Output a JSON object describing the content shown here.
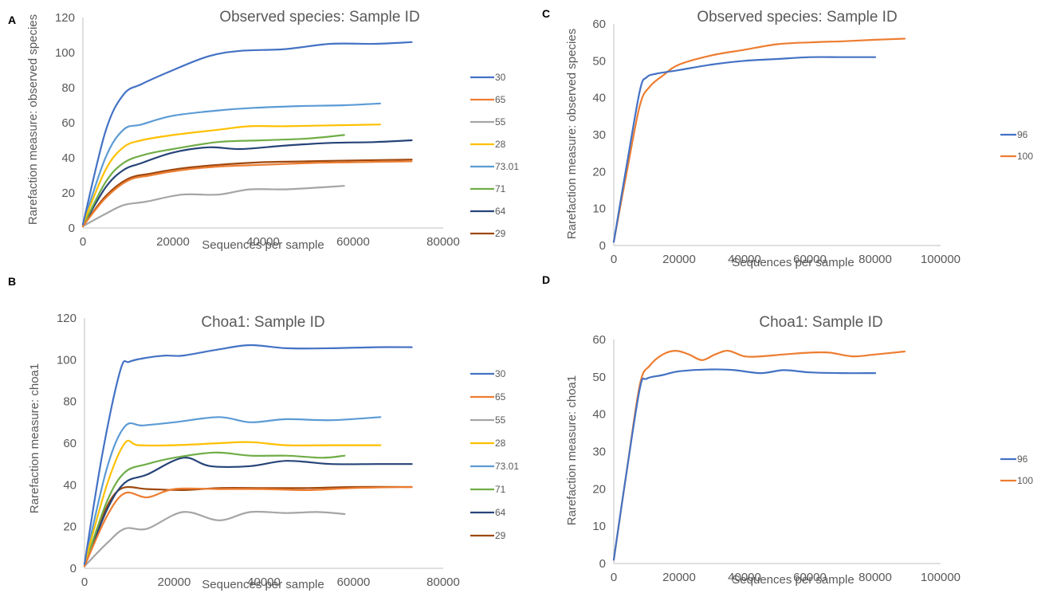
{
  "colors": {
    "30": "#4472c4",
    "65": "#ed7d31",
    "55": "#a5a5a5",
    "28": "#ffc000",
    "73.01": "#5b9bd5",
    "71": "#70ad47",
    "64": "#264478",
    "29": "#9e480e",
    "96": "#4472c4",
    "100": "#ed7d31",
    "axis": "#bfbfbf",
    "text": "#595959"
  },
  "chart_data": [
    {
      "panel": "A",
      "type": "line",
      "title": "Observed species: Sample ID",
      "xlabel": "Sequences per sample",
      "ylabel": "Rarefaction measure: observed species",
      "xlim": [
        0,
        80000
      ],
      "ylim": [
        0,
        120
      ],
      "xticks": [
        0,
        20000,
        40000,
        60000,
        80000
      ],
      "yticks": [
        0,
        20,
        40,
        60,
        80,
        100,
        120
      ],
      "legend_position": "right",
      "series": [
        {
          "name": "30",
          "x": [
            0,
            5000,
            9000,
            13000,
            20000,
            28000,
            35000,
            45000,
            55000,
            65000,
            73000
          ],
          "values": [
            2,
            55,
            76,
            82,
            90,
            98,
            101,
            102,
            105,
            105,
            106
          ]
        },
        {
          "name": "65",
          "x": [
            0,
            5000,
            10000,
            15000,
            22000,
            30000,
            40000,
            50000,
            60000,
            73000
          ],
          "values": [
            1,
            17,
            27,
            30,
            33,
            35,
            36,
            37,
            37.5,
            38
          ]
        },
        {
          "name": "55",
          "x": [
            0,
            5000,
            9000,
            14000,
            22000,
            30000,
            37000,
            45000,
            52000,
            58000
          ],
          "values": [
            1,
            8,
            13,
            15,
            19,
            19,
            22,
            22,
            23,
            24
          ]
        },
        {
          "name": "28",
          "x": [
            0,
            5000,
            9000,
            13000,
            20000,
            30000,
            37000,
            45000,
            55000,
            66000
          ],
          "values": [
            2,
            33,
            46,
            50,
            53,
            56,
            58,
            58,
            58.5,
            59
          ]
        },
        {
          "name": "73.01",
          "x": [
            0,
            5000,
            9000,
            13000,
            20000,
            30000,
            38000,
            48000,
            58000,
            66000
          ],
          "values": [
            2,
            40,
            56,
            59,
            64,
            67,
            68.5,
            69.5,
            70,
            71
          ]
        },
        {
          "name": "71",
          "x": [
            0,
            5000,
            9000,
            14000,
            20000,
            30000,
            40000,
            50000,
            58000
          ],
          "values": [
            1,
            26,
            37,
            42,
            45,
            49,
            50,
            51,
            53
          ]
        },
        {
          "name": "64",
          "x": [
            0,
            5000,
            9000,
            13000,
            20000,
            28000,
            35000,
            45000,
            55000,
            65000,
            73000
          ],
          "values": [
            1,
            23,
            33,
            37,
            43,
            46,
            45,
            47,
            48.5,
            49,
            50
          ]
        },
        {
          "name": "29",
          "x": [
            0,
            5000,
            10000,
            15000,
            22000,
            30000,
            40000,
            50000,
            60000,
            73000
          ],
          "values": [
            1,
            18,
            28,
            31,
            34,
            36,
            37.5,
            38,
            38.5,
            39
          ]
        }
      ]
    },
    {
      "panel": "B",
      "type": "line",
      "title": "Choa1: Sample ID",
      "xlabel": "Sequences per sample",
      "ylabel": "Rarefaction measure: choa1",
      "xlim": [
        0,
        80000
      ],
      "ylim": [
        0,
        120
      ],
      "xticks": [
        0,
        20000,
        40000,
        60000,
        80000
      ],
      "yticks": [
        0,
        20,
        40,
        60,
        80,
        100,
        120
      ],
      "legend_position": "right",
      "series": [
        {
          "name": "30",
          "x": [
            0,
            4000,
            8000,
            10000,
            14000,
            18000,
            22000,
            30000,
            37000,
            45000,
            55000,
            65000,
            73000
          ],
          "values": [
            2,
            55,
            95,
            99,
            101,
            102,
            102,
            105,
            107,
            105.5,
            105.5,
            106,
            106
          ]
        },
        {
          "name": "65",
          "x": [
            0,
            5000,
            9000,
            14000,
            20000,
            30000,
            40000,
            50000,
            60000,
            73000
          ],
          "values": [
            1,
            25,
            36,
            34,
            38,
            38,
            38,
            37.5,
            38.5,
            39
          ]
        },
        {
          "name": "55",
          "x": [
            0,
            5000,
            9000,
            14000,
            22000,
            30000,
            37000,
            45000,
            52000,
            58000
          ],
          "values": [
            1,
            12,
            19,
            19,
            27,
            23,
            27,
            26.5,
            27,
            26
          ]
        },
        {
          "name": "28",
          "x": [
            0,
            5000,
            9000,
            12000,
            20000,
            30000,
            37000,
            45000,
            55000,
            66000
          ],
          "values": [
            2,
            40,
            60,
            59,
            59,
            60,
            60.5,
            59,
            59,
            59
          ]
        },
        {
          "name": "73.01",
          "x": [
            0,
            5000,
            9000,
            13000,
            20000,
            30000,
            37000,
            45000,
            55000,
            66000
          ],
          "values": [
            2,
            48,
            68,
            68.5,
            70,
            72.5,
            70,
            71.5,
            71,
            72.5
          ]
        },
        {
          "name": "71",
          "x": [
            0,
            5000,
            9000,
            14000,
            20000,
            29000,
            37000,
            45000,
            53000,
            58000
          ],
          "values": [
            1,
            32,
            46,
            50,
            53,
            55.5,
            54,
            54,
            53,
            54
          ]
        },
        {
          "name": "64",
          "x": [
            0,
            5000,
            9000,
            14000,
            22000,
            28000,
            37000,
            45000,
            55000,
            65000,
            73000
          ],
          "values": [
            1,
            28,
            41,
            45,
            53,
            49,
            49,
            51.5,
            50,
            50,
            50
          ]
        },
        {
          "name": "29",
          "x": [
            0,
            4000,
            8000,
            14000,
            22000,
            30000,
            40000,
            50000,
            60000,
            73000
          ],
          "values": [
            1,
            25,
            38,
            38,
            37.5,
            38.5,
            38.5,
            38.5,
            39,
            39
          ]
        }
      ]
    },
    {
      "panel": "C",
      "type": "line",
      "title": "Observed species: Sample ID",
      "xlabel": "Sequences per sample",
      "ylabel": "Rarefaction measure: observed species",
      "xlim": [
        0,
        100000
      ],
      "ylim": [
        0,
        60
      ],
      "xticks": [
        0,
        20000,
        40000,
        60000,
        80000,
        100000
      ],
      "yticks": [
        0,
        10,
        20,
        30,
        40,
        50,
        60
      ],
      "legend_position": "right",
      "series": [
        {
          "name": "96",
          "x": [
            0,
            4000,
            8000,
            10000,
            13000,
            20000,
            30000,
            40000,
            50000,
            60000,
            70000,
            80000
          ],
          "values": [
            1,
            22,
            42,
            45.5,
            46.5,
            47.5,
            49,
            50,
            50.5,
            51,
            51,
            51
          ]
        },
        {
          "name": "100",
          "x": [
            0,
            4000,
            8000,
            11000,
            15000,
            20000,
            30000,
            40000,
            50000,
            60000,
            70000,
            80000,
            89000
          ],
          "values": [
            1,
            20,
            38,
            43,
            46,
            49,
            51.5,
            53,
            54.5,
            55,
            55.3,
            55.7,
            56
          ]
        }
      ]
    },
    {
      "panel": "D",
      "type": "line",
      "title": "Choa1: Sample ID",
      "xlabel": "Sequences per sample",
      "ylabel": "Rarefaction measure: choa1",
      "xlim": [
        0,
        100000
      ],
      "ylim": [
        0,
        60
      ],
      "xticks": [
        0,
        20000,
        40000,
        60000,
        80000,
        100000
      ],
      "yticks": [
        0,
        10,
        20,
        30,
        40,
        50,
        60
      ],
      "legend_position": "right",
      "series": [
        {
          "name": "96",
          "x": [
            0,
            4000,
            8000,
            10000,
            15000,
            20000,
            30000,
            37000,
            45000,
            52000,
            60000,
            70000,
            80000
          ],
          "values": [
            1,
            25,
            47,
            49.5,
            50.5,
            51.5,
            52,
            51.8,
            51,
            51.8,
            51.2,
            51,
            51
          ]
        },
        {
          "name": "100",
          "x": [
            0,
            4000,
            8000,
            11000,
            15000,
            19000,
            23000,
            27000,
            31000,
            35000,
            40000,
            45000,
            52000,
            60000,
            66000,
            73000,
            80000,
            89000
          ],
          "values": [
            1,
            25,
            48,
            53,
            56,
            57,
            56,
            54.5,
            56,
            57,
            55.5,
            55.5,
            56,
            56.5,
            56.5,
            55.5,
            56,
            56.8
          ]
        }
      ]
    }
  ]
}
